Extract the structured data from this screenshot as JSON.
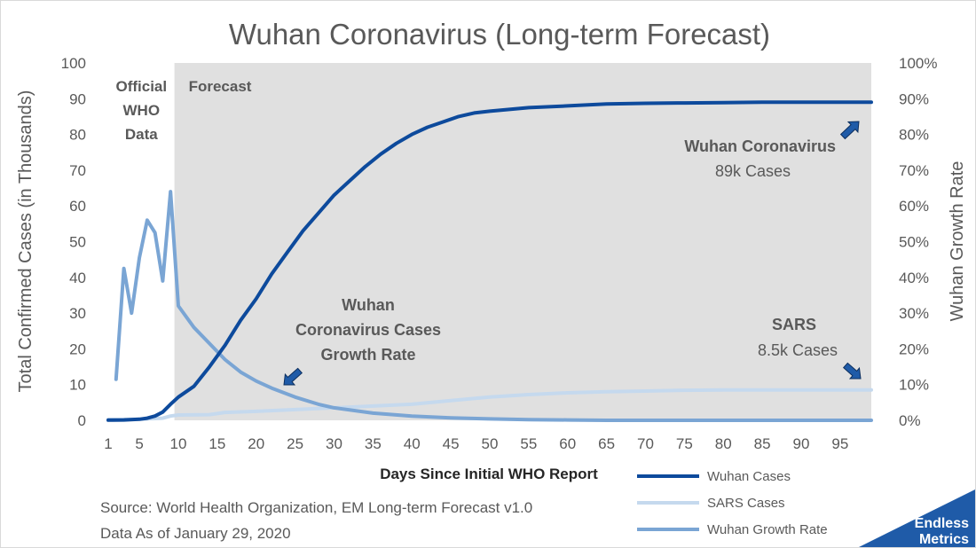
{
  "chart_data": {
    "type": "line",
    "title": "Wuhan Coronavirus (Long-term Forecast)",
    "xlabel": "Days Since Initial WHO Report",
    "ylabel": "Total Confirmed Cases (in Thousands)",
    "y2label": "Wuhan Growth Rate",
    "xlim": [
      1,
      99
    ],
    "ylim": [
      0,
      100
    ],
    "y2lim": [
      0,
      1
    ],
    "x_ticks": [
      "1",
      "5",
      "10",
      "15",
      "20",
      "25",
      "30",
      "35",
      "40",
      "45",
      "50",
      "55",
      "60",
      "65",
      "70",
      "75",
      "80",
      "85",
      "90",
      "95"
    ],
    "y_ticks": [
      "0",
      "10",
      "20",
      "30",
      "40",
      "50",
      "60",
      "70",
      "80",
      "90",
      "100"
    ],
    "y2_ticks": [
      "0%",
      "10%",
      "20%",
      "30%",
      "40%",
      "50%",
      "60%",
      "70%",
      "80%",
      "90%",
      "100%"
    ],
    "regions": [
      {
        "label_lines": [
          "Official",
          "WHO",
          "Data"
        ],
        "x_range": [
          1,
          9.5
        ],
        "fill": "#ffffff"
      },
      {
        "label_lines": [
          "Forecast"
        ],
        "x_range": [
          9.5,
          99
        ],
        "fill": "#e0e0e0"
      }
    ],
    "series": [
      {
        "name": "Wuhan Cases",
        "axis": "left",
        "color": "#0d4a9c",
        "width": 4,
        "points": [
          [
            1,
            0.05
          ],
          [
            3,
            0.1
          ],
          [
            5,
            0.3
          ],
          [
            6,
            0.6
          ],
          [
            7,
            1.2
          ],
          [
            8,
            2.3
          ],
          [
            9,
            4.5
          ],
          [
            10,
            6.5
          ],
          [
            12,
            9.5
          ],
          [
            14,
            15
          ],
          [
            16,
            21
          ],
          [
            18,
            28
          ],
          [
            20,
            34
          ],
          [
            22,
            41
          ],
          [
            24,
            47
          ],
          [
            26,
            53
          ],
          [
            28,
            58
          ],
          [
            30,
            63
          ],
          [
            32,
            67
          ],
          [
            34,
            71
          ],
          [
            36,
            74.5
          ],
          [
            38,
            77.5
          ],
          [
            40,
            80
          ],
          [
            42,
            82
          ],
          [
            44,
            83.5
          ],
          [
            46,
            85
          ],
          [
            48,
            86
          ],
          [
            50,
            86.5
          ],
          [
            55,
            87.5
          ],
          [
            60,
            88
          ],
          [
            65,
            88.5
          ],
          [
            70,
            88.7
          ],
          [
            75,
            88.8
          ],
          [
            80,
            88.9
          ],
          [
            85,
            89
          ],
          [
            90,
            89
          ],
          [
            95,
            89
          ],
          [
            99,
            89
          ]
        ]
      },
      {
        "name": "SARS Cases",
        "axis": "left",
        "color": "#c5d9ee",
        "width": 4,
        "points": [
          [
            1,
            0.2
          ],
          [
            5,
            0.3
          ],
          [
            8,
            0.6
          ],
          [
            9,
            1.2
          ],
          [
            10,
            1.5
          ],
          [
            14,
            1.6
          ],
          [
            16,
            2.2
          ],
          [
            20,
            2.5
          ],
          [
            25,
            3
          ],
          [
            30,
            3.5
          ],
          [
            35,
            4
          ],
          [
            40,
            4.5
          ],
          [
            45,
            5.5
          ],
          [
            50,
            6.5
          ],
          [
            55,
            7.2
          ],
          [
            60,
            7.7
          ],
          [
            65,
            8
          ],
          [
            70,
            8.2
          ],
          [
            75,
            8.4
          ],
          [
            80,
            8.5
          ],
          [
            90,
            8.5
          ],
          [
            99,
            8.5
          ]
        ]
      },
      {
        "name": "Wuhan Growth Rate",
        "axis": "right",
        "color": "#7aa5d4",
        "width": 4,
        "points": [
          [
            2,
            0.115
          ],
          [
            3,
            0.425
          ],
          [
            4,
            0.3
          ],
          [
            5,
            0.455
          ],
          [
            6,
            0.56
          ],
          [
            7,
            0.525
          ],
          [
            8,
            0.39
          ],
          [
            9,
            0.64
          ],
          [
            10,
            0.32
          ],
          [
            12,
            0.26
          ],
          [
            14,
            0.215
          ],
          [
            16,
            0.17
          ],
          [
            18,
            0.135
          ],
          [
            20,
            0.11
          ],
          [
            22,
            0.09
          ],
          [
            25,
            0.065
          ],
          [
            28,
            0.045
          ],
          [
            30,
            0.035
          ],
          [
            35,
            0.02
          ],
          [
            40,
            0.012
          ],
          [
            45,
            0.007
          ],
          [
            50,
            0.004
          ],
          [
            55,
            0.002
          ],
          [
            60,
            0.001
          ],
          [
            65,
            0
          ],
          [
            99,
            0
          ]
        ]
      }
    ],
    "annotations": [
      {
        "bold": "Wuhan Coronavirus",
        "normal": "89k Cases"
      },
      {
        "bold_lines": [
          "Wuhan",
          "Coronavirus Cases",
          "Growth Rate"
        ]
      },
      {
        "bold": "SARS",
        "normal": "8.5k Cases"
      }
    ],
    "legend": {
      "placement": "bottom-right"
    }
  },
  "footer": {
    "source": "Source: World Health Organization, EM Long-term Forecast v1.0",
    "asof": "Data As of January 29, 2020"
  },
  "logo": {
    "line1": "Endless",
    "line2": "Metrics",
    "color": "#1f5ba8"
  }
}
